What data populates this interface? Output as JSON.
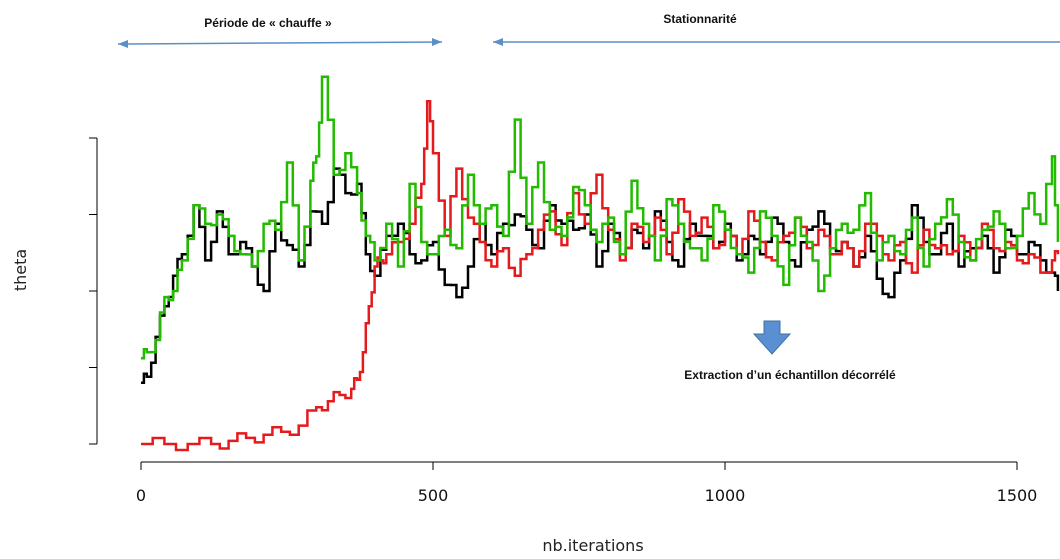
{
  "chart_data": {
    "type": "line",
    "xlabel": "nb.iterations",
    "ylabel": "theta",
    "xlim": [
      0,
      1570
    ],
    "ylim": [
      0,
      1
    ],
    "x_ticks": [
      0,
      500,
      1000,
      1500
    ],
    "y_ticks": [
      0,
      0.25,
      0.5,
      0.75,
      1.0
    ],
    "y_tick_labels_shown": false,
    "grid": false,
    "legend": "none",
    "series": [
      {
        "color": "#000000",
        "x": [
          0,
          10,
          25,
          40,
          55,
          70,
          90,
          110,
          130,
          150,
          170,
          190,
          210,
          230,
          250,
          270,
          290,
          310,
          330,
          350,
          370,
          385,
          400,
          420,
          440,
          460,
          480,
          500,
          520,
          540,
          560,
          580,
          600,
          620,
          640,
          660,
          680,
          700,
          720,
          740,
          760,
          780,
          800,
          820,
          840,
          860,
          880,
          900,
          920,
          940,
          960,
          980,
          1000,
          1020,
          1040,
          1060,
          1080,
          1100,
          1120,
          1140,
          1160,
          1180,
          1200,
          1220,
          1240,
          1260,
          1280,
          1300,
          1320,
          1340,
          1360,
          1380,
          1400,
          1420,
          1440,
          1460,
          1480,
          1500,
          1520,
          1540,
          1560,
          1570
        ],
        "values": [
          0.2,
          0.22,
          0.35,
          0.45,
          0.55,
          0.62,
          0.78,
          0.6,
          0.76,
          0.62,
          0.66,
          0.58,
          0.5,
          0.72,
          0.65,
          0.58,
          0.76,
          0.72,
          0.9,
          0.82,
          0.85,
          0.62,
          0.55,
          0.68,
          0.72,
          0.62,
          0.6,
          0.66,
          0.52,
          0.48,
          0.58,
          0.72,
          0.62,
          0.72,
          0.75,
          0.7,
          0.64,
          0.78,
          0.72,
          0.7,
          0.75,
          0.58,
          0.72,
          0.62,
          0.7,
          0.64,
          0.76,
          0.66,
          0.58,
          0.72,
          0.68,
          0.64,
          0.72,
          0.6,
          0.68,
          0.62,
          0.74,
          0.66,
          0.58,
          0.7,
          0.76,
          0.64,
          0.66,
          0.58,
          0.68,
          0.54,
          0.48,
          0.6,
          0.78,
          0.66,
          0.62,
          0.72,
          0.58,
          0.64,
          0.68,
          0.56,
          0.7,
          0.62,
          0.66,
          0.6,
          0.56,
          0.5
        ]
      },
      {
        "color": "#e41a1c",
        "x": [
          0,
          40,
          80,
          120,
          150,
          180,
          210,
          240,
          270,
          300,
          320,
          340,
          360,
          370,
          380,
          390,
          400,
          410,
          420,
          440,
          460,
          480,
          490,
          500,
          520,
          540,
          560,
          580,
          600,
          620,
          640,
          660,
          680,
          700,
          720,
          740,
          760,
          780,
          800,
          820,
          840,
          860,
          880,
          900,
          920,
          940,
          960,
          980,
          1000,
          1020,
          1040,
          1060,
          1080,
          1100,
          1120,
          1140,
          1160,
          1180,
          1200,
          1220,
          1240,
          1260,
          1280,
          1300,
          1320,
          1340,
          1360,
          1380,
          1400,
          1420,
          1440,
          1460,
          1480,
          1500,
          1520,
          1540,
          1560,
          1570
        ],
        "values": [
          0.0,
          0.0,
          0.0,
          0.0,
          0.01,
          0.02,
          0.03,
          0.04,
          0.06,
          0.12,
          0.14,
          0.16,
          0.18,
          0.21,
          0.3,
          0.45,
          0.58,
          0.6,
          0.62,
          0.66,
          0.72,
          0.85,
          1.12,
          0.95,
          0.68,
          0.9,
          0.74,
          0.66,
          0.58,
          0.64,
          0.55,
          0.62,
          0.7,
          0.76,
          0.65,
          0.82,
          0.72,
          0.88,
          0.7,
          0.6,
          0.72,
          0.66,
          0.74,
          0.62,
          0.8,
          0.68,
          0.74,
          0.64,
          0.7,
          0.62,
          0.76,
          0.66,
          0.6,
          0.68,
          0.74,
          0.64,
          0.7,
          0.62,
          0.66,
          0.58,
          0.72,
          0.68,
          0.6,
          0.66,
          0.56,
          0.7,
          0.64,
          0.62,
          0.68,
          0.6,
          0.72,
          0.64,
          0.66,
          0.6,
          0.62,
          0.56,
          0.6,
          0.62
        ]
      },
      {
        "color": "#22bb00",
        "x": [
          0,
          10,
          25,
          40,
          55,
          70,
          90,
          110,
          130,
          150,
          170,
          190,
          210,
          230,
          250,
          270,
          290,
          300,
          310,
          330,
          350,
          370,
          385,
          400,
          420,
          440,
          460,
          480,
          500,
          520,
          540,
          560,
          580,
          600,
          620,
          640,
          660,
          680,
          700,
          720,
          740,
          760,
          780,
          800,
          820,
          840,
          860,
          880,
          900,
          920,
          940,
          960,
          980,
          1000,
          1020,
          1040,
          1060,
          1080,
          1100,
          1120,
          1140,
          1160,
          1180,
          1200,
          1220,
          1240,
          1260,
          1280,
          1300,
          1320,
          1340,
          1360,
          1380,
          1400,
          1420,
          1440,
          1460,
          1480,
          1500,
          1520,
          1540,
          1560,
          1570
        ],
        "values": [
          0.28,
          0.3,
          0.34,
          0.48,
          0.5,
          0.6,
          0.78,
          0.72,
          0.75,
          0.68,
          0.62,
          0.58,
          0.72,
          0.7,
          0.92,
          0.6,
          0.86,
          0.94,
          1.2,
          0.88,
          0.95,
          0.82,
          0.68,
          0.6,
          0.72,
          0.58,
          0.85,
          0.66,
          0.62,
          0.7,
          0.64,
          0.88,
          0.72,
          0.78,
          0.68,
          1.06,
          0.72,
          0.92,
          0.7,
          0.68,
          0.84,
          0.78,
          0.66,
          0.74,
          0.62,
          0.86,
          0.72,
          0.6,
          0.8,
          0.72,
          0.64,
          0.6,
          0.78,
          0.7,
          0.62,
          0.56,
          0.76,
          0.68,
          0.52,
          0.74,
          0.66,
          0.5,
          0.64,
          0.72,
          0.7,
          0.82,
          0.6,
          0.68,
          0.62,
          0.74,
          0.58,
          0.72,
          0.8,
          0.66,
          0.6,
          0.7,
          0.76,
          0.64,
          0.68,
          0.82,
          0.72,
          0.94,
          0.66
        ]
      }
    ],
    "annotations": {
      "warmup_label": "Période de « chauffe »",
      "stationary_label": "Stationnarité",
      "extraction_label": "Extraction d’un échantillon décorrélé"
    },
    "annotation_colors": {
      "arrow": "#5b8fc7",
      "down_arrow": "#5b8fd3"
    }
  }
}
